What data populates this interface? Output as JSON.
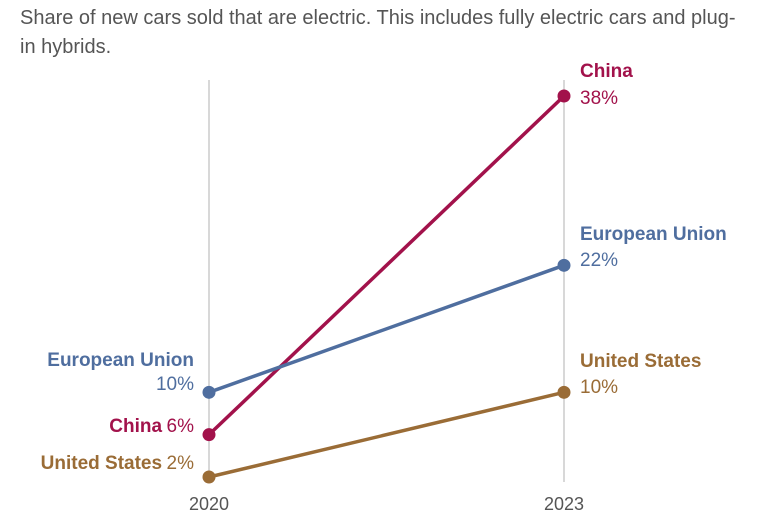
{
  "subtitle": "Share of new cars sold that are electric. This includes fully electric cars and plug-in hybrids.",
  "chart_data": {
    "type": "line",
    "subtitle": "Share of new cars sold that are electric. This includes fully electric cars and plug-in hybrids.",
    "x": [
      "2020",
      "2023"
    ],
    "y_unit": "%",
    "ylim": [
      0,
      40
    ],
    "series": [
      {
        "name": "China",
        "values": [
          6,
          38
        ],
        "labels": [
          "6%",
          "38%"
        ],
        "color": "#a2124b"
      },
      {
        "name": "European Union",
        "values": [
          10,
          22
        ],
        "labels": [
          "10%",
          "22%"
        ],
        "color": "#4f6e9f"
      },
      {
        "name": "United States",
        "values": [
          2,
          10
        ],
        "labels": [
          "2%",
          "10%"
        ],
        "color": "#9a6c36"
      }
    ],
    "grid": false,
    "legend": "inline labels at line ends"
  }
}
